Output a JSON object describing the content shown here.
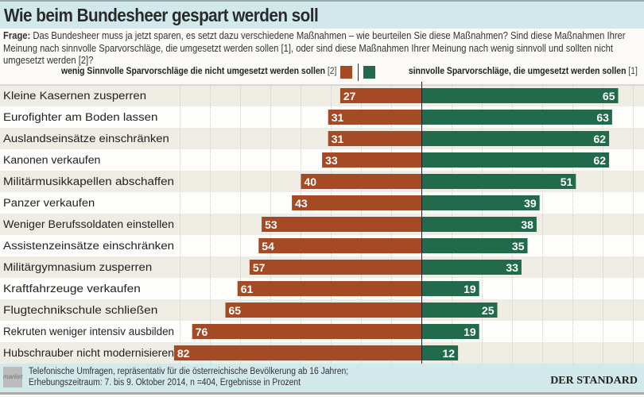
{
  "header": {
    "title": "Wie beim Bundesheer gespart werden soll"
  },
  "question": {
    "label": "Frage:",
    "text": "Das Bundesheer muss ja jetzt sparen, es setzt dazu verschiedene Maßnahmen – wie beurteilen Sie diese Maßnahmen? Sind diese Maßnahmen Ihrer Meinung nach sinnvolle Sparvorschläge, die umgesetzt werden sollen [1], oder sind diese Maßnahmen Ihrer Meinung nach wenig sinnvoll und sollten nicht umgesetzt werden [2]?"
  },
  "colors": {
    "negative": "#a44a24",
    "positive": "#226a4c",
    "row_alt": "#efece4",
    "header_bg": "#d2e9ec"
  },
  "chart_data": {
    "type": "bar",
    "orientation": "horizontal-diverging",
    "categories": [
      "Kleine Kasernen zusperren",
      "Eurofighter am Boden lassen",
      "Auslandseinsätze einschränken",
      "Kanonen verkaufen",
      "Militärmusikkapellen abschaffen",
      "Panzer verkaufen",
      "Weniger Berufssoldaten einstellen",
      "Assistenzeinsätze einschränken",
      "Militärgymnasium zusperren",
      "Kraftfahrzeuge verkaufen",
      "Flugtechnikschule schließen",
      "Rekruten weniger intensiv ausbilden",
      "Hubschrauber nicht modernisieren"
    ],
    "series": [
      {
        "name": "wenig Sinnvolle Sparvorschläge die nicht umgesetzt werden sollen",
        "code": "[2]",
        "values": [
          27,
          31,
          31,
          33,
          40,
          43,
          53,
          54,
          57,
          61,
          65,
          76,
          82
        ]
      },
      {
        "name": "sinnvolle Sparvorschläge, die umgesetzt werden sollen",
        "code": "[1]",
        "values": [
          65,
          63,
          62,
          62,
          51,
          39,
          38,
          35,
          33,
          19,
          25,
          19,
          12
        ]
      }
    ],
    "xlim": [
      -82,
      70
    ],
    "grid": true,
    "legend": "top"
  },
  "footer": {
    "line1": "Telefonische Umfragen, repräsentativ für die österreichische Bevölkerung ab 16 Jahren;",
    "line2": "Erhebungszeitraum: 7. bis 9. Oktober 2014, n =404, Ergebnisse in Prozent",
    "source_logo": "market",
    "brand": "DER STANDARD"
  }
}
